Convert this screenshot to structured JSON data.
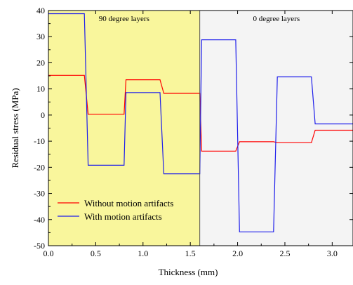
{
  "chart_data": {
    "type": "line",
    "xlabel": "Thickness (mm)",
    "ylabel": "Residual stress (MPa)",
    "xlim": [
      0.0,
      3.22
    ],
    "ylim": [
      -50,
      40
    ],
    "xticks": [
      0.0,
      0.5,
      1.0,
      1.5,
      2.0,
      2.5,
      3.0
    ],
    "xtick_labels": [
      "0.0",
      "0.5",
      "1.0",
      "1.5",
      "2.0",
      "2.5",
      "3.0"
    ],
    "yticks": [
      40,
      30,
      20,
      10,
      0,
      -10,
      -20,
      -30,
      -40,
      -50
    ],
    "ytick_labels": [
      "40",
      "30",
      "20",
      "10",
      "0",
      "-10",
      "-20",
      "-30",
      "-40",
      "-50"
    ],
    "regions": [
      {
        "label": "90 degree layers",
        "x_range": [
          0.0,
          1.6
        ],
        "color": "#f9f69c"
      },
      {
        "label": "0 degree layers",
        "x_range": [
          1.6,
          3.22
        ],
        "color": "#f4f4f4"
      }
    ],
    "legend": {
      "position": "bottom-left"
    },
    "series": [
      {
        "name": "Without motion artifacts",
        "color": "#ff0000",
        "x": [
          0.0,
          0.38,
          0.42,
          0.8,
          0.82,
          1.18,
          1.22,
          1.6,
          1.62,
          1.98,
          2.02,
          2.38,
          2.42,
          2.78,
          2.82,
          3.22
        ],
        "y": [
          15.2,
          15.2,
          0.3,
          0.3,
          13.5,
          13.5,
          8.3,
          8.3,
          -13.8,
          -13.8,
          -10.2,
          -10.2,
          -10.6,
          -10.6,
          -5.8,
          -5.8
        ]
      },
      {
        "name": "With motion artifacts",
        "color": "#1e1eeb",
        "x": [
          0.0,
          0.38,
          0.42,
          0.8,
          0.82,
          1.18,
          1.22,
          1.6,
          1.62,
          1.98,
          2.02,
          2.38,
          2.42,
          2.78,
          2.82,
          3.22
        ],
        "y": [
          38.8,
          38.8,
          -19.2,
          -19.2,
          8.6,
          8.6,
          -22.5,
          -22.5,
          28.8,
          28.8,
          -44.7,
          -44.7,
          14.6,
          14.6,
          -3.4,
          -3.4
        ]
      }
    ]
  }
}
